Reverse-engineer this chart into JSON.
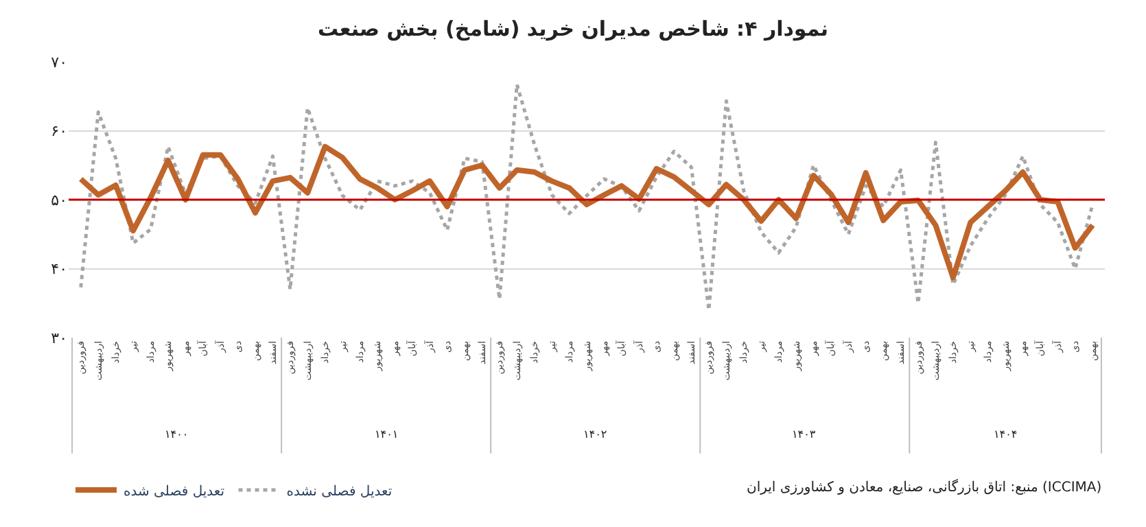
{
  "chart_data": {
    "type": "line",
    "title": "نمودار ۴: شاخص مدیران خرید (شامخ) بخش صنعت",
    "categories": [
      "فروردین",
      "اردیبهشت",
      "خرداد",
      "تیر",
      "مرداد",
      "شهریور",
      "مهر",
      "آبان",
      "آذر",
      "دی",
      "بهمن",
      "اسفند",
      "فروردین",
      "اردیبهشت",
      "خرداد",
      "تیر",
      "مرداد",
      "شهریور",
      "مهر",
      "آبان",
      "آذر",
      "دی",
      "بهمن",
      "اسفند",
      "فروردین",
      "اردیبهشت",
      "خرداد",
      "تیر",
      "مرداد",
      "شهریور",
      "مهر",
      "آبان",
      "آذر",
      "دی",
      "بهمن",
      "اسفند",
      "فروردین",
      "اردیبهشت",
      "خرداد",
      "تیر",
      "مرداد",
      "شهریور",
      "مهر",
      "آبان",
      "آذر",
      "دی",
      "بهمن",
      "اسفند",
      "فروردین",
      "اردیبهشت",
      "خرداد",
      "تیر",
      "مرداد",
      "شهریور",
      "مهر",
      "آبان",
      "آذر",
      "دی",
      "بهمن"
    ],
    "series": [
      {
        "name": "تعدیل فصلی نشده",
        "color": "#a6a6a6",
        "line_style": "dotted",
        "values": [
          37.3,
          62.7,
          56.0,
          43.7,
          45.7,
          57.7,
          50.8,
          56.0,
          56.3,
          52.0,
          49.5,
          56.3,
          37.0,
          63.3,
          56.0,
          50.6,
          48.5,
          52.7,
          52.0,
          52.7,
          51.0,
          45.6,
          56.0,
          55.5,
          35.6,
          66.7,
          58.0,
          50.7,
          48.0,
          50.6,
          53.0,
          51.9,
          48.4,
          53.3,
          57.0,
          54.7,
          34.0,
          64.3,
          51.3,
          45.3,
          42.3,
          46.0,
          55.0,
          50.0,
          45.0,
          52.0,
          49.0,
          54.3,
          35.0,
          58.3,
          37.7,
          43.3,
          47.3,
          50.7,
          56.3,
          49.3,
          46.7,
          40.0,
          49.3
        ]
      },
      {
        "name": "تعدیل فصلی شده",
        "color": "#c0652a",
        "line_style": "solid",
        "values": [
          53.0,
          50.7,
          52.1,
          45.5,
          50.3,
          55.7,
          50.0,
          56.5,
          56.5,
          53.0,
          48.1,
          52.7,
          53.2,
          51.0,
          57.7,
          56.1,
          53.0,
          51.7,
          50.0,
          51.3,
          52.7,
          49.0,
          54.3,
          55.0,
          51.7,
          54.3,
          54.0,
          52.7,
          51.7,
          49.3,
          50.7,
          52.0,
          50.1,
          54.5,
          53.3,
          51.3,
          49.3,
          52.2,
          50.0,
          46.9,
          50.0,
          47.3,
          53.5,
          50.8,
          46.7,
          53.9,
          47.0,
          49.7,
          49.9,
          46.3,
          38.7,
          46.7,
          49.0,
          51.3,
          54.0,
          50.0,
          49.7,
          43.0,
          46.3
        ]
      }
    ],
    "ylim": [
      30,
      70
    ],
    "yticks": [
      {
        "value": 30,
        "label": "۳۰"
      },
      {
        "value": 40,
        "label": "۴۰"
      },
      {
        "value": 50,
        "label": "۵۰"
      },
      {
        "value": 60,
        "label": "۶۰"
      },
      {
        "value": 70,
        "label": "۷۰"
      }
    ],
    "ref_lines": [
      {
        "axis": "y",
        "value": 50,
        "label": null,
        "color": "#c00000"
      }
    ],
    "annotations": [
      "منبع: اتاق بازرگانی، صنایع، معادن و کشاورزی ایران (ICCIMA)",
      "۱۴۰۰",
      "۱۴۰۱",
      "۱۴۰۲",
      "۱۴۰۳",
      "۱۴۰۴"
    ],
    "grid": "y",
    "legend": "bottom left",
    "marker": "none"
  }
}
